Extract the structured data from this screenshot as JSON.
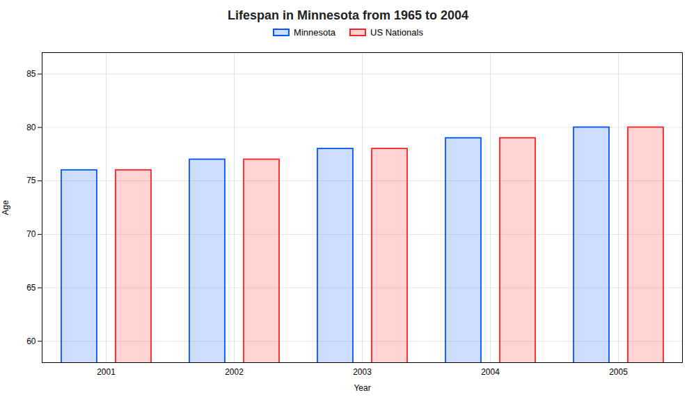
{
  "chart_data": {
    "type": "bar",
    "title": "Lifespan in Minnesota from 1965 to 2004",
    "xlabel": "Year",
    "ylabel": "Age",
    "categories": [
      "2001",
      "2002",
      "2003",
      "2004",
      "2005"
    ],
    "series": [
      {
        "name": "Minnesota",
        "color": "#0055ff",
        "values": [
          76,
          77,
          78,
          79,
          80
        ]
      },
      {
        "name": "US Nationals",
        "color": "#ff2222",
        "values": [
          76,
          77,
          78,
          79,
          80
        ]
      }
    ],
    "ylim": [
      58,
      87
    ],
    "yticks": [
      60,
      65,
      70,
      75,
      80,
      85
    ],
    "grid": true,
    "legend": "top"
  }
}
